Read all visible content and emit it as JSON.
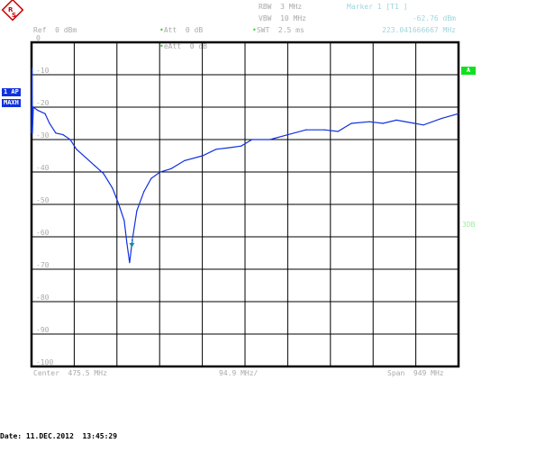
{
  "header": {
    "ref": "Ref  0 dBm",
    "att": "Att  0 dB",
    "eatt": "eAtt  0 dB",
    "rbw": "RBW  3 MHz",
    "vbw": "VBW  10 MHz",
    "swt": "SWT  2.5 ms",
    "marker_title": "Marker 1 [T1 ]",
    "marker_level": "-62.76 dBm",
    "marker_freq": "223.041666667 MHz"
  },
  "side_labels": {
    "trace": "1 AP",
    "detector": "MAXH",
    "a": "A",
    "db3": "3DB"
  },
  "footer": {
    "center": "Center  475.5 MHz",
    "per_div": "94.9 MHz/",
    "span": "Span  949 MHz",
    "date": "Date: 11.DEC.2012  13:45:29"
  },
  "colors": {
    "trace": "#1030e0",
    "marker": "#109090",
    "grid": "#000000",
    "text": "#aaaaaa",
    "badge_green": "#10e020"
  },
  "chart_data": {
    "type": "line",
    "xlim": [
      0,
      949
    ],
    "ylim": [
      -100,
      0
    ],
    "xunit": "MHz",
    "yunit": "dBm",
    "grid": true,
    "y_tick_labels": [
      "0",
      "-10",
      "-20",
      "-30",
      "-40",
      "-50",
      "-60",
      "-70",
      "-80",
      "-90",
      "-100"
    ],
    "series": [
      {
        "x": [
          0,
          1,
          2,
          4,
          14,
          30,
          40,
          54,
          70,
          86,
          100,
          120,
          140,
          160,
          180,
          194,
          206,
          212,
          218,
          224,
          234,
          250,
          266,
          286,
          310,
          340,
          380,
          410,
          440,
          466,
          490,
          530,
          570,
          610,
          651,
          681,
          711,
          751,
          781,
          811,
          851,
          871,
          911,
          949
        ],
        "y": [
          -28,
          -8,
          -28,
          -20,
          -21,
          -22,
          -25,
          -28,
          -28.5,
          -30,
          -33,
          -35.5,
          -38,
          -40.5,
          -45,
          -50,
          -55,
          -62,
          -68,
          -61,
          -52,
          -46,
          -42,
          -40,
          -39,
          -36.5,
          -35,
          -33,
          -32.5,
          -32,
          -30,
          -30,
          -28.5,
          -27,
          -27,
          -27.5,
          -25,
          -24.5,
          -25,
          -24,
          -25,
          -25.5,
          -23.5,
          -22
        ]
      }
    ],
    "marker": {
      "label": "1",
      "x": 223.041666667,
      "y": -62.76
    }
  }
}
